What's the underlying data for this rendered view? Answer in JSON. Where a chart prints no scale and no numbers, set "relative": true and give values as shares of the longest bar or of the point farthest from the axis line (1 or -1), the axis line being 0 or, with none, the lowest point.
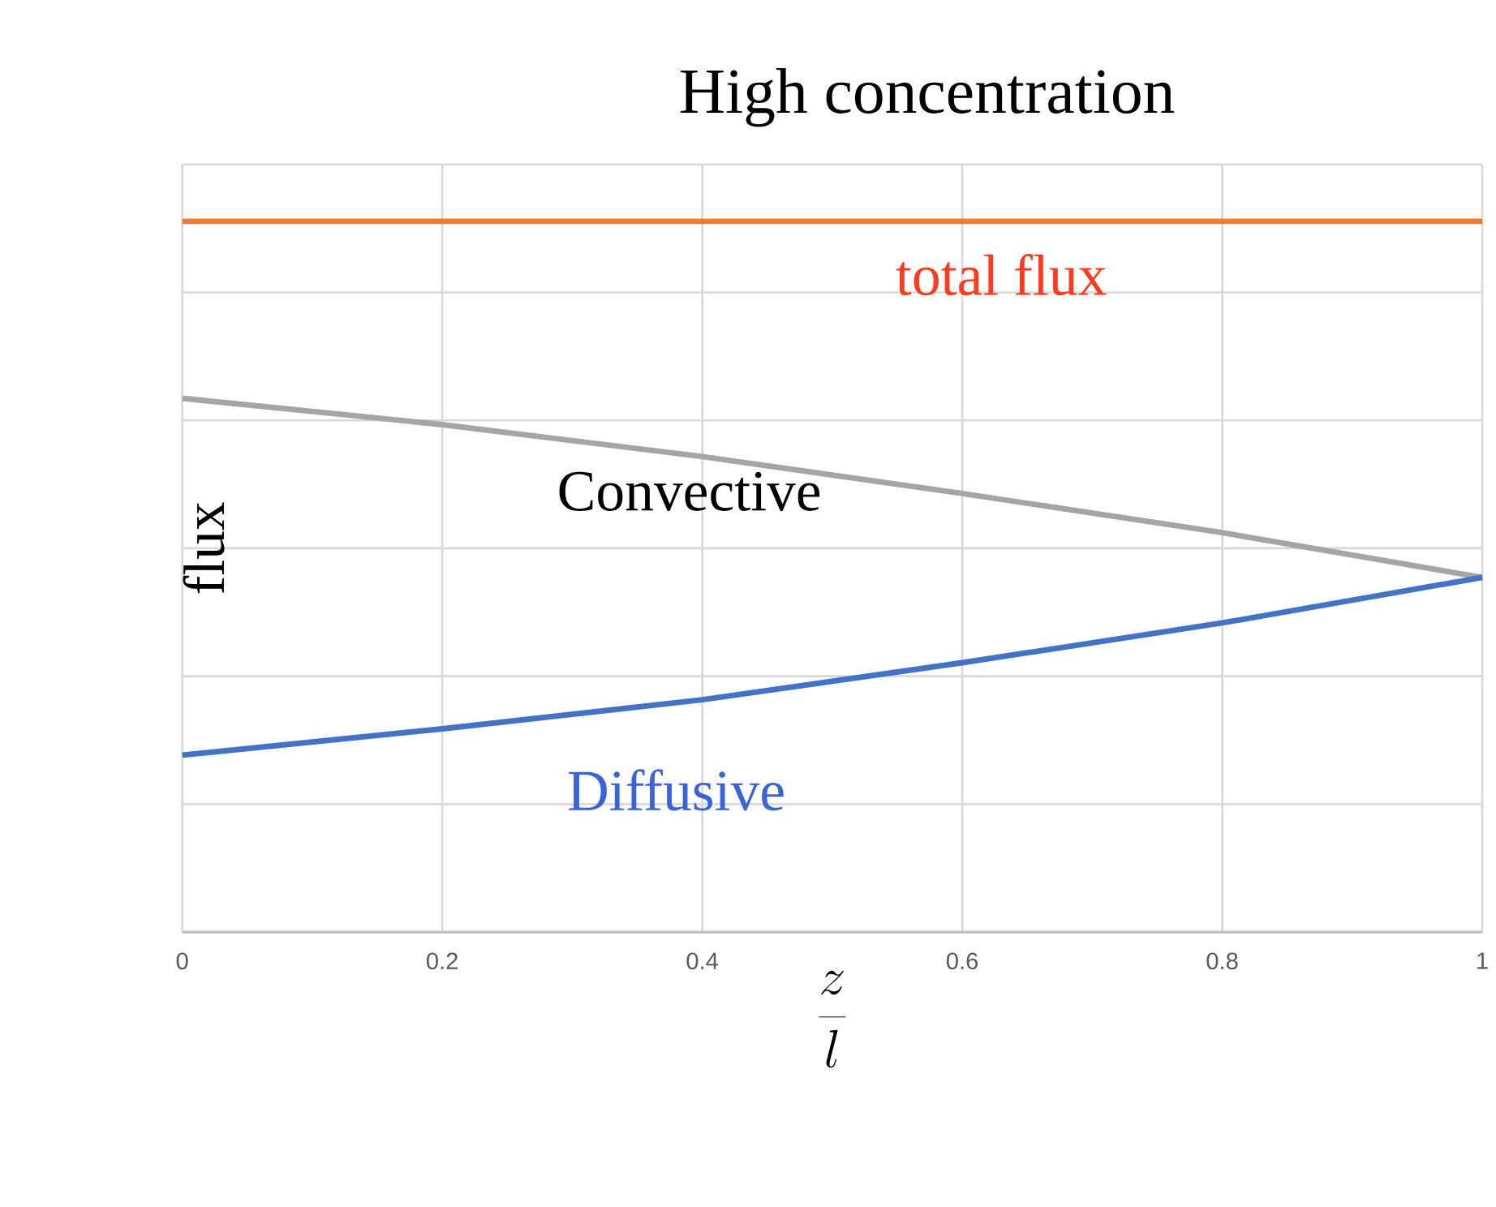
{
  "chart_data": {
    "type": "line",
    "title": "High concentration",
    "xlabel": "\\frac{z}{l}",
    "ylabel": "flux",
    "relative": true,
    "x": [
      0,
      0.2,
      0.4,
      0.6,
      0.8,
      1
    ],
    "xlim": [
      0,
      1
    ],
    "xticks": [
      0,
      0.2,
      0.4,
      0.6,
      0.8,
      1
    ],
    "grid": true,
    "marker": "none",
    "line_style": "solid",
    "series": [
      {
        "name": "total flux",
        "color": "#ed7d31",
        "values": [
          1,
          1,
          1,
          1,
          1,
          1
        ]
      },
      {
        "name": "Convective",
        "color": "#a5a5a5",
        "values": [
          0.751,
          0.714,
          0.669,
          0.617,
          0.562,
          0.499
        ]
      },
      {
        "name": "Diffusive",
        "color": "#4472c4",
        "values": [
          0.249,
          0.286,
          0.327,
          0.379,
          0.435,
          0.499
        ]
      }
    ]
  }
}
